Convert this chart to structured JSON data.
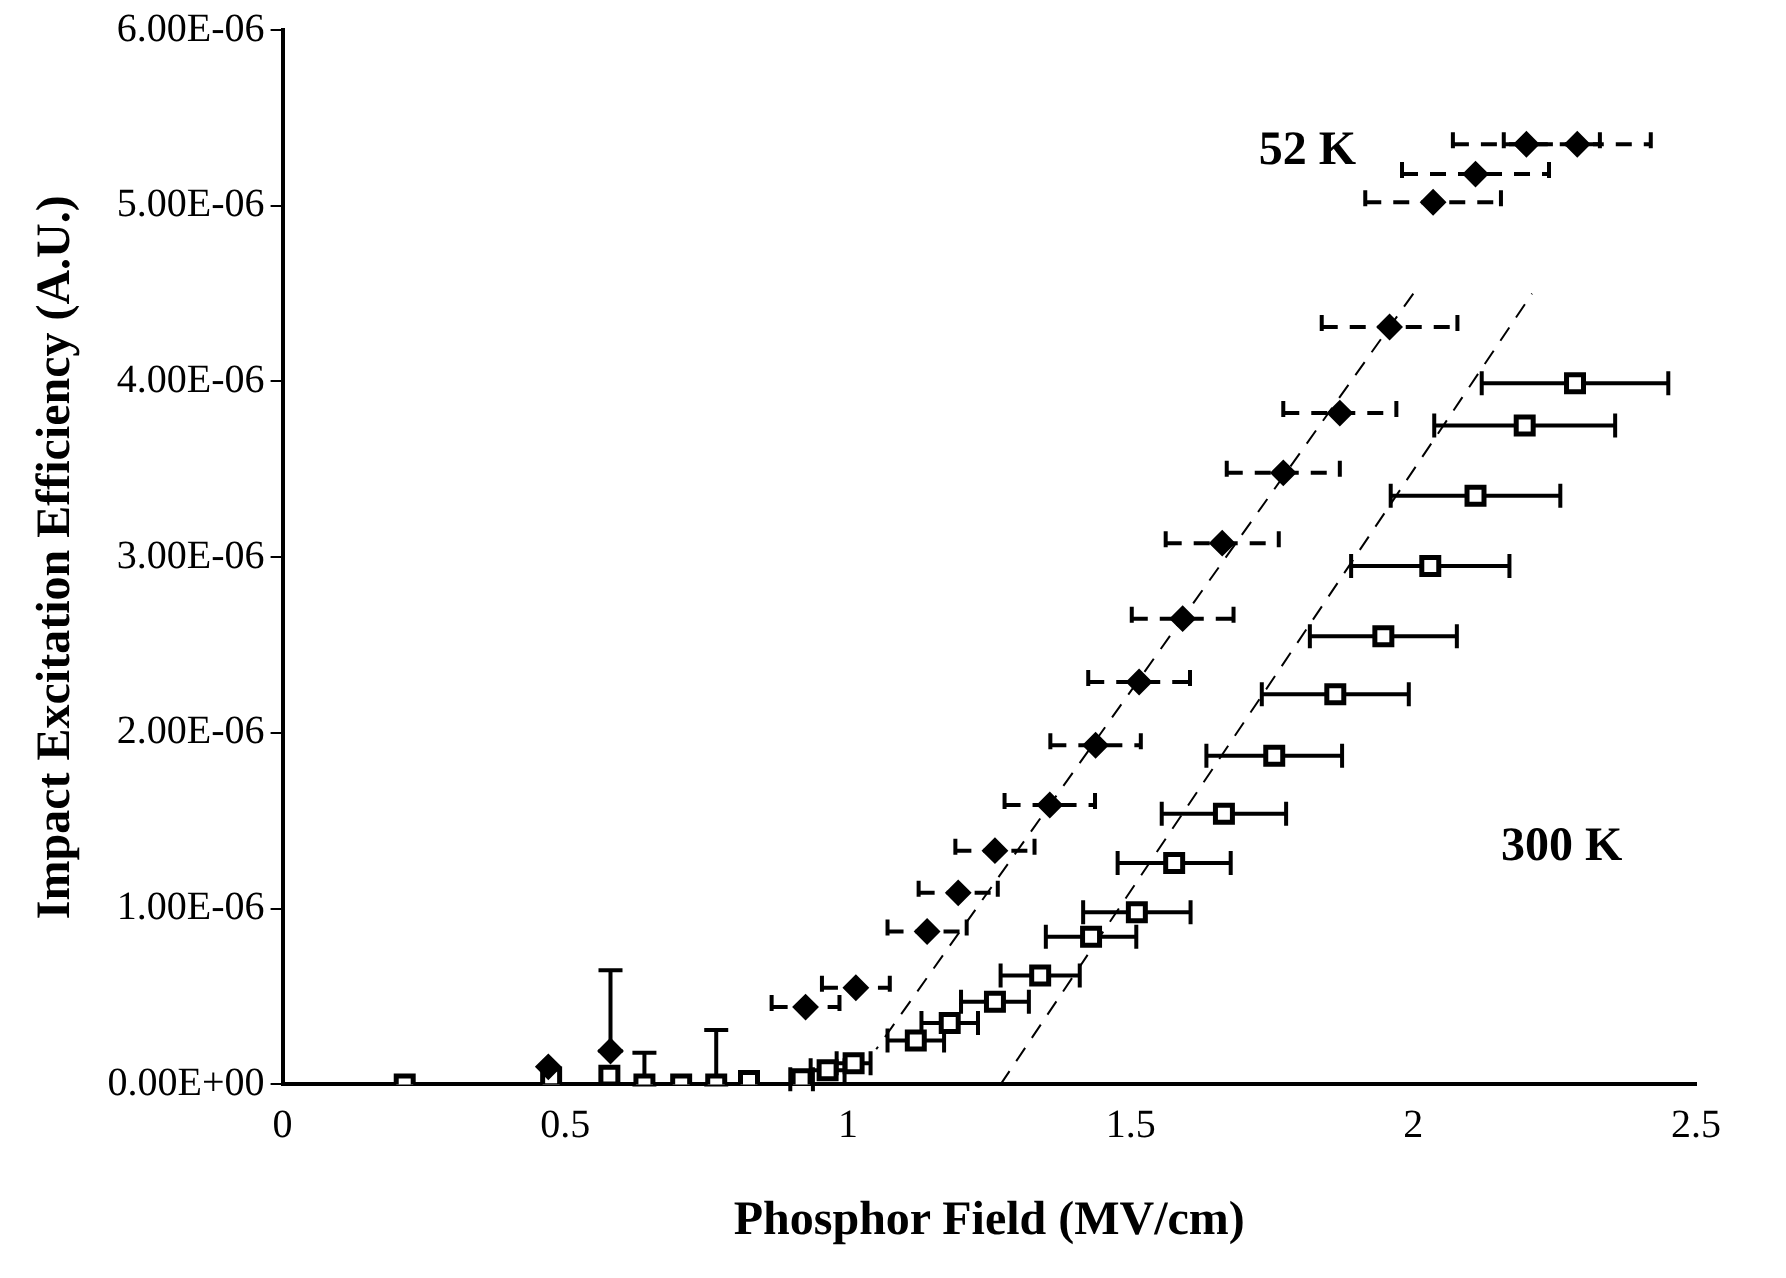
{
  "chart_data": {
    "type": "scatter",
    "xlabel": "Phosphor Field (MV/cm)",
    "ylabel": "Impact Excitation Efficiency (A.U.)",
    "xlim": [
      0,
      2.5
    ],
    "xticks": [
      0,
      0.5,
      1,
      1.5,
      2,
      2.5
    ],
    "ylim": [
      0,
      6e-06
    ],
    "yticks": [
      {
        "value": 0,
        "label": "0.00E+00"
      },
      {
        "value": 1e-06,
        "label": "1.00E-06"
      },
      {
        "value": 2e-06,
        "label": "2.00E-06"
      },
      {
        "value": 3e-06,
        "label": "3.00E-06"
      },
      {
        "value": 4e-06,
        "label": "4.00E-06"
      },
      {
        "value": 5e-06,
        "label": "5.00E-06"
      },
      {
        "value": 6e-06,
        "label": "6.00E-06"
      }
    ],
    "grid": false,
    "legend": false,
    "annotations": [
      "52 K",
      "300 K"
    ],
    "series": [
      {
        "color": "#000000",
        "marker": "diamond",
        "line_style": "dashed",
        "x": [
          0.47,
          0.58,
          0.925,
          1.014,
          1.14,
          1.195,
          1.26,
          1.357,
          1.438,
          1.515,
          1.592,
          1.662,
          1.77,
          1.87,
          1.958,
          2.035,
          2.11,
          2.2,
          2.29
        ],
        "values": [
          1e-07,
          1.9e-07,
          4.4e-07,
          5.5e-07,
          8.7e-07,
          1.09e-06,
          1.33e-06,
          1.59e-06,
          1.93e-06,
          2.29e-06,
          2.65e-06,
          3.08e-06,
          3.48e-06,
          3.82e-06,
          4.31e-06,
          5.02e-06,
          5.18e-06,
          5.35e-06,
          5.35e-06
        ],
        "xerrors": [
          null,
          null,
          0.06,
          0.06,
          0.07,
          0.07,
          0.07,
          0.08,
          0.08,
          0.09,
          0.09,
          0.1,
          0.1,
          0.1,
          0.12,
          0.12,
          0.13,
          0.13,
          0.13
        ],
        "errors": [
          null,
          [
            1.9e-07,
            6.5e-07
          ],
          null,
          null,
          null,
          null,
          null,
          null,
          null,
          null,
          null,
          null,
          null,
          null,
          null,
          null,
          null,
          null,
          null
        ]
      },
      {
        "color": "#000000",
        "marker": "square",
        "line_style": "solid",
        "x": [
          0.216,
          0.475,
          0.578,
          0.64,
          0.705,
          0.767,
          0.825,
          0.918,
          0.964,
          1.01,
          1.12,
          1.18,
          1.26,
          1.34,
          1.43,
          1.511,
          1.577,
          1.665,
          1.754,
          1.862,
          1.947,
          2.03,
          2.11,
          2.197,
          2.286
        ],
        "values": [
          0,
          4e-08,
          5e-08,
          0,
          0,
          0,
          2e-08,
          3e-08,
          8e-08,
          1.2e-07,
          2.5e-07,
          3.5e-07,
          4.7e-07,
          6.2e-07,
          8.4e-07,
          9.8e-07,
          1.26e-06,
          1.54e-06,
          1.87e-06,
          2.22e-06,
          2.55e-06,
          2.95e-06,
          3.35e-06,
          3.75e-06,
          3.99e-06
        ],
        "xerrors": [
          null,
          null,
          null,
          null,
          null,
          null,
          null,
          0.02,
          0.03,
          0.03,
          0.05,
          0.05,
          0.06,
          0.07,
          0.08,
          0.095,
          0.1,
          0.11,
          0.12,
          0.13,
          0.13,
          0.14,
          0.15,
          0.16,
          0.165
        ],
        "errors": [
          null,
          null,
          null,
          [
            0,
            1.8e-07
          ],
          null,
          [
            0,
            3.1e-07
          ],
          null,
          null,
          null,
          null,
          null,
          null,
          null,
          null,
          null,
          null,
          null,
          null,
          null,
          null,
          null,
          null,
          null,
          null,
          null
        ]
      },
      {
        "type": "line",
        "color": "#000000",
        "marker": "none",
        "line_style": "dashed",
        "x": [
          2.0,
          1.05
        ],
        "values": [
          4.5e-06,
          2e-07
        ]
      },
      {
        "type": "line",
        "color": "#000000",
        "marker": "none",
        "line_style": "dashed",
        "x": [
          1.27,
          2.21
        ],
        "values": [
          0,
          4.5e-06
        ]
      }
    ]
  }
}
